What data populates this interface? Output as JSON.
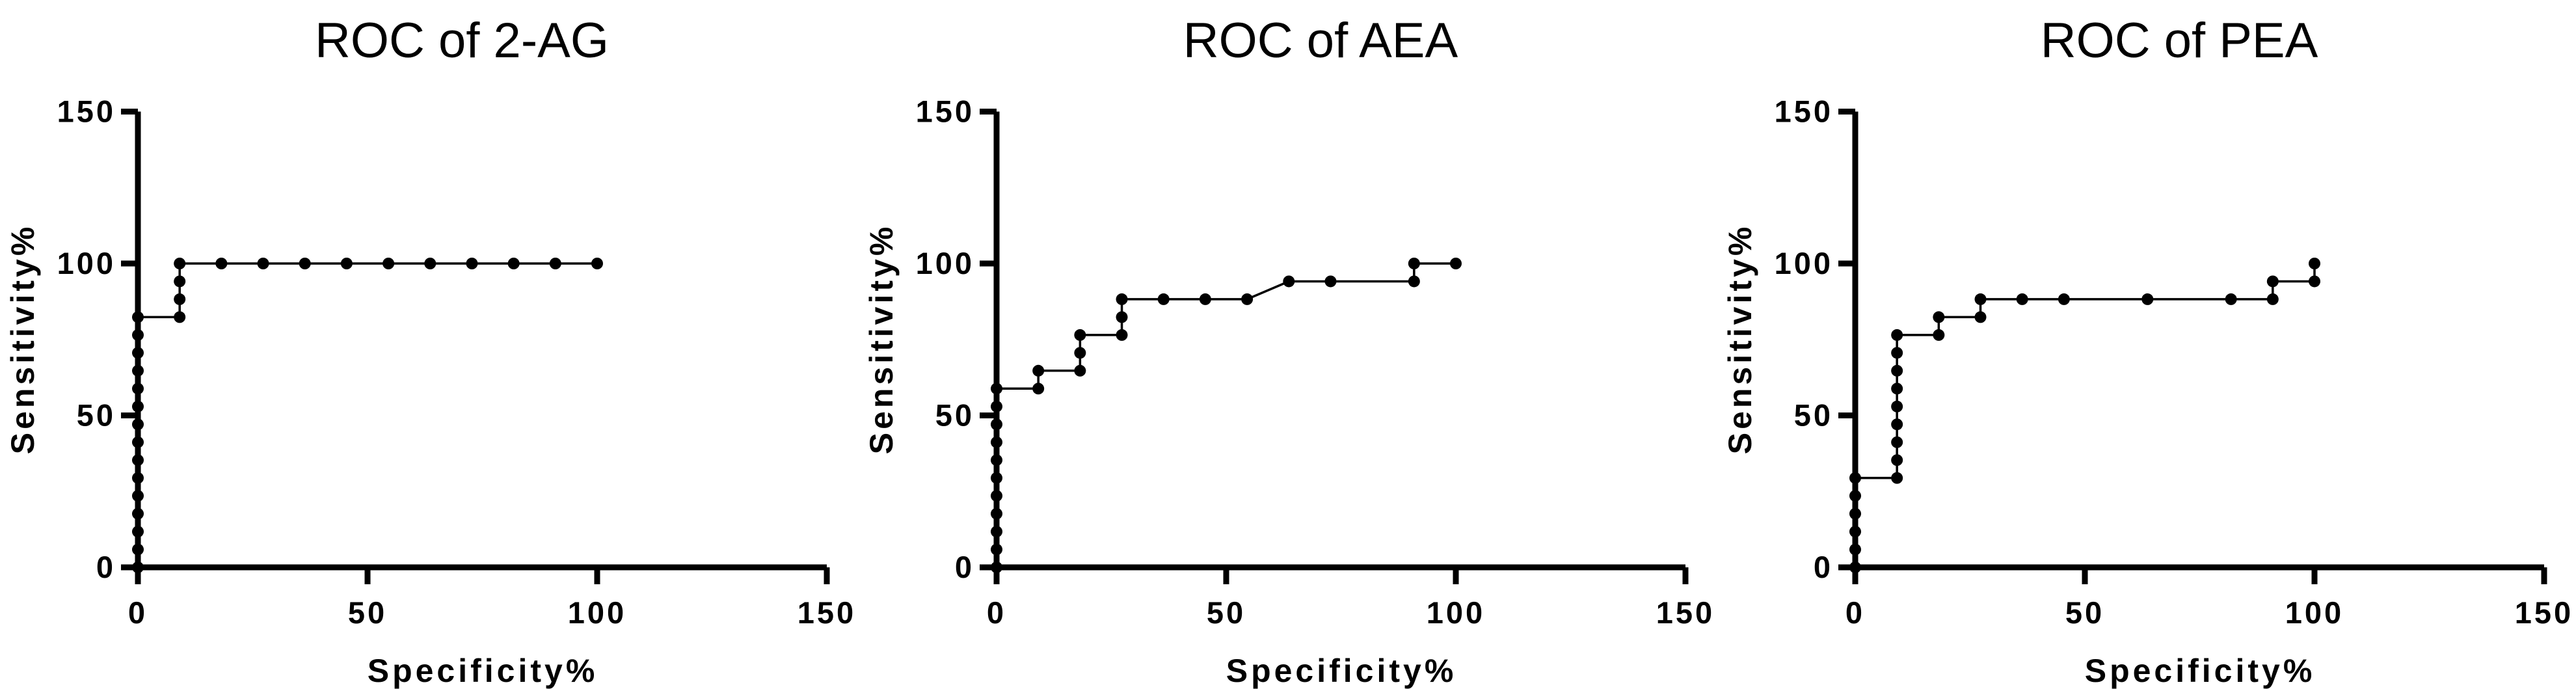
{
  "figure": {
    "background_color": "#ffffff",
    "ink_color": "#000000"
  },
  "chart_data": [
    {
      "type": "line",
      "subtype": "roc-step-curve",
      "title": "ROC of 2-AG",
      "xlabel": "Specificity%",
      "ylabel": "Sensitivity%",
      "xlim": [
        0,
        150
      ],
      "ylim": [
        0,
        150
      ],
      "xticks": [
        0,
        50,
        100,
        150
      ],
      "yticks": [
        0,
        50,
        100,
        150
      ],
      "grid": false,
      "legend": null,
      "line_color": "#000000",
      "marker": "circle",
      "path": [
        [
          0,
          0
        ],
        [
          0,
          82.35
        ],
        [
          9.09,
          82.35
        ],
        [
          9.09,
          100
        ],
        [
          100,
          100
        ]
      ],
      "dots": [
        [
          0,
          0
        ],
        [
          0,
          5.88
        ],
        [
          0,
          11.76
        ],
        [
          0,
          17.65
        ],
        [
          0,
          23.53
        ],
        [
          0,
          29.41
        ],
        [
          0,
          35.29
        ],
        [
          0,
          41.18
        ],
        [
          0,
          47.06
        ],
        [
          0,
          52.94
        ],
        [
          0,
          58.82
        ],
        [
          0,
          64.71
        ],
        [
          0,
          70.59
        ],
        [
          0,
          76.47
        ],
        [
          0,
          82.35
        ],
        [
          9.09,
          82.35
        ],
        [
          9.09,
          88.24
        ],
        [
          9.09,
          94.12
        ],
        [
          9.09,
          100
        ],
        [
          18.18,
          100
        ],
        [
          27.27,
          100
        ],
        [
          36.36,
          100
        ],
        [
          45.45,
          100
        ],
        [
          54.55,
          100
        ],
        [
          63.64,
          100
        ],
        [
          72.73,
          100
        ],
        [
          81.82,
          100
        ],
        [
          90.91,
          100
        ],
        [
          100,
          100
        ]
      ]
    },
    {
      "type": "line",
      "subtype": "roc-step-curve",
      "title": "ROC of AEA",
      "xlabel": "Specificity%",
      "ylabel": "Sensitivity%",
      "xlim": [
        0,
        150
      ],
      "ylim": [
        0,
        150
      ],
      "xticks": [
        0,
        50,
        100,
        150
      ],
      "yticks": [
        0,
        50,
        100,
        150
      ],
      "grid": false,
      "legend": null,
      "line_color": "#000000",
      "marker": "circle",
      "path": [
        [
          0,
          0
        ],
        [
          0,
          58.82
        ],
        [
          9.09,
          58.82
        ],
        [
          9.09,
          64.71
        ],
        [
          18.18,
          64.71
        ],
        [
          18.18,
          76.47
        ],
        [
          27.27,
          76.47
        ],
        [
          27.27,
          88.24
        ],
        [
          54.55,
          88.24
        ],
        [
          63.64,
          94.12
        ],
        [
          90.91,
          94.12
        ],
        [
          90.91,
          100
        ],
        [
          100,
          100
        ]
      ],
      "dots": [
        [
          0,
          0
        ],
        [
          0,
          5.88
        ],
        [
          0,
          11.76
        ],
        [
          0,
          17.65
        ],
        [
          0,
          23.53
        ],
        [
          0,
          29.41
        ],
        [
          0,
          35.29
        ],
        [
          0,
          41.18
        ],
        [
          0,
          47.06
        ],
        [
          0,
          52.94
        ],
        [
          0,
          58.82
        ],
        [
          9.09,
          58.82
        ],
        [
          9.09,
          64.71
        ],
        [
          18.18,
          64.71
        ],
        [
          18.18,
          70.59
        ],
        [
          18.18,
          76.47
        ],
        [
          27.27,
          76.47
        ],
        [
          27.27,
          82.35
        ],
        [
          27.27,
          88.24
        ],
        [
          36.36,
          88.24
        ],
        [
          45.45,
          88.24
        ],
        [
          54.55,
          88.24
        ],
        [
          63.64,
          94.12
        ],
        [
          72.73,
          94.12
        ],
        [
          90.91,
          94.12
        ],
        [
          90.91,
          100
        ],
        [
          100,
          100
        ]
      ]
    },
    {
      "type": "line",
      "subtype": "roc-step-curve",
      "title": "ROC of PEA",
      "xlabel": "Specificity%",
      "ylabel": "Sensitivity%",
      "xlim": [
        0,
        150
      ],
      "ylim": [
        0,
        150
      ],
      "xticks": [
        0,
        50,
        100,
        150
      ],
      "yticks": [
        0,
        50,
        100,
        150
      ],
      "grid": false,
      "legend": null,
      "line_color": "#000000",
      "marker": "circle",
      "path": [
        [
          0,
          0
        ],
        [
          0,
          29.41
        ],
        [
          9.09,
          29.41
        ],
        [
          9.09,
          76.47
        ],
        [
          18.18,
          76.47
        ],
        [
          18.18,
          82.35
        ],
        [
          27.27,
          82.35
        ],
        [
          27.27,
          88.24
        ],
        [
          90.91,
          88.24
        ],
        [
          90.91,
          94.12
        ],
        [
          100,
          94.12
        ],
        [
          100,
          100
        ]
      ],
      "dots": [
        [
          0,
          0
        ],
        [
          0,
          5.88
        ],
        [
          0,
          11.76
        ],
        [
          0,
          17.65
        ],
        [
          0,
          23.53
        ],
        [
          0,
          29.41
        ],
        [
          9.09,
          29.41
        ],
        [
          9.09,
          35.29
        ],
        [
          9.09,
          41.18
        ],
        [
          9.09,
          47.06
        ],
        [
          9.09,
          52.94
        ],
        [
          9.09,
          58.82
        ],
        [
          9.09,
          64.71
        ],
        [
          9.09,
          70.59
        ],
        [
          9.09,
          76.47
        ],
        [
          18.18,
          76.47
        ],
        [
          18.18,
          82.35
        ],
        [
          27.27,
          82.35
        ],
        [
          27.27,
          88.24
        ],
        [
          36.36,
          88.24
        ],
        [
          45.45,
          88.24
        ],
        [
          63.64,
          88.24
        ],
        [
          81.82,
          88.24
        ],
        [
          90.91,
          88.24
        ],
        [
          90.91,
          94.12
        ],
        [
          100,
          94.12
        ],
        [
          100,
          100
        ]
      ]
    }
  ]
}
